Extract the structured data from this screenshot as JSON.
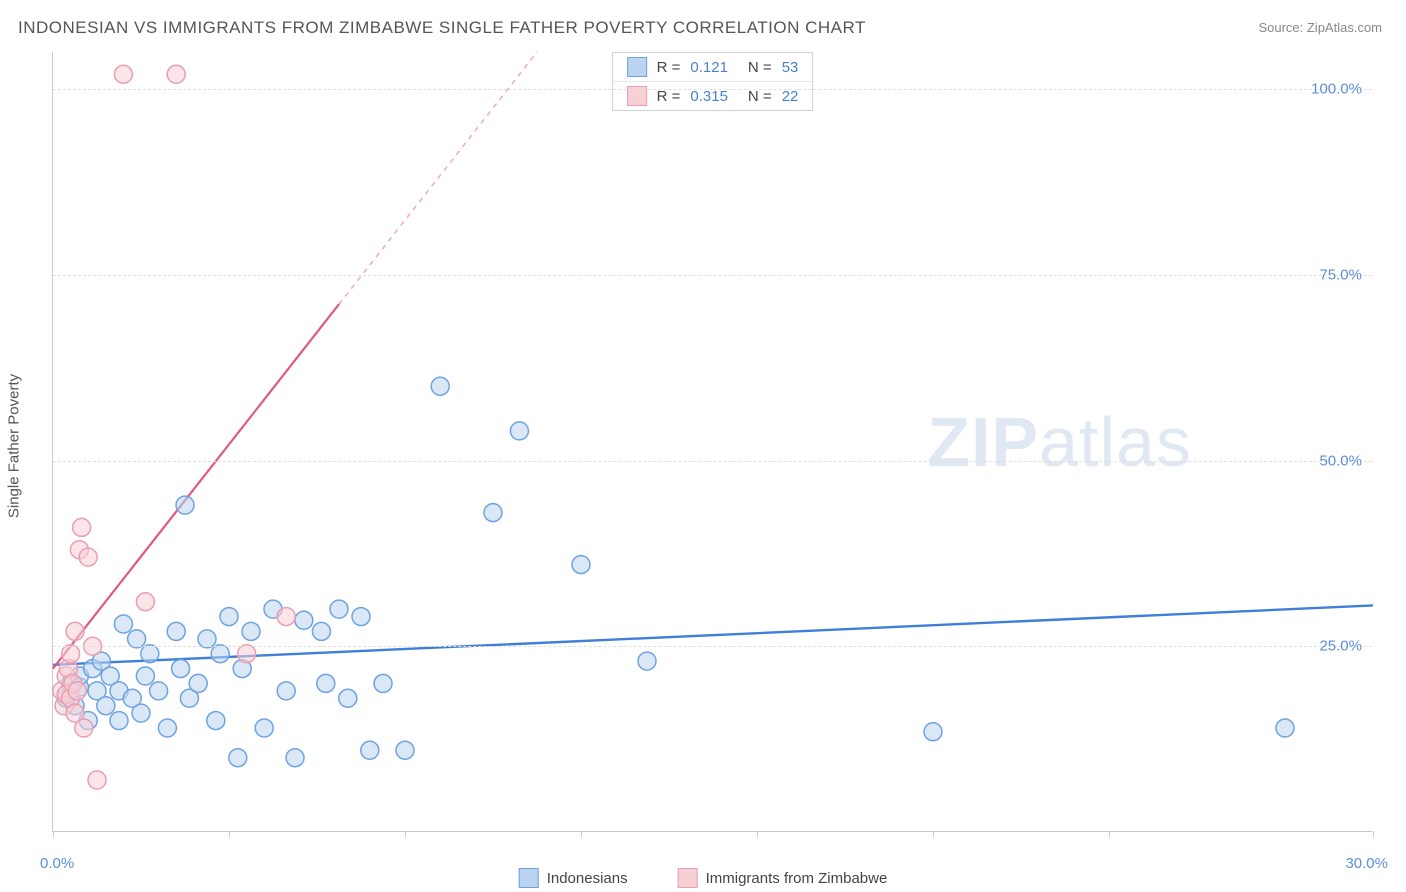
{
  "title": "INDONESIAN VS IMMIGRANTS FROM ZIMBABWE SINGLE FATHER POVERTY CORRELATION CHART",
  "source": "Source: ZipAtlas.com",
  "watermark_zip": "ZIP",
  "watermark_atlas": "atlas",
  "y_axis_title": "Single Father Poverty",
  "chart": {
    "type": "scatter",
    "background_color": "#ffffff",
    "grid_color": "#e0e0e0",
    "axis_color": "#c9c9c9",
    "tick_label_color": "#5b8fd6",
    "xlim": [
      0,
      30
    ],
    "ylim": [
      0,
      105
    ],
    "x_ticks": [
      0,
      4,
      8,
      12,
      16,
      20,
      24,
      30
    ],
    "x_tick_labels": {
      "0": "0.0%",
      "30": "30.0%"
    },
    "y_ticks": [
      25,
      50,
      75,
      100
    ],
    "y_tick_labels": {
      "25": "25.0%",
      "50": "50.0%",
      "75": "75.0%",
      "100": "100.0%"
    },
    "marker_radius": 9,
    "marker_stroke_width": 1.5,
    "series": [
      {
        "name": "Indonesians",
        "fill": "#b9d3f0",
        "stroke": "#6ea3e0",
        "fill_opacity": 0.55,
        "regression": {
          "x1": 0,
          "y1": 22.5,
          "x2": 30,
          "y2": 30.5,
          "color": "#3f7fd8",
          "width": 2.4,
          "solid_until_x": 30
        },
        "r_label": "R =",
        "r_value": "0.121",
        "n_label": "N =",
        "n_value": "53",
        "points": [
          [
            0.3,
            18
          ],
          [
            0.4,
            20
          ],
          [
            0.5,
            17
          ],
          [
            0.6,
            19.5
          ],
          [
            0.6,
            21
          ],
          [
            0.8,
            15
          ],
          [
            0.9,
            22
          ],
          [
            1.0,
            19
          ],
          [
            1.1,
            23
          ],
          [
            1.2,
            17
          ],
          [
            1.3,
            21
          ],
          [
            1.5,
            19
          ],
          [
            1.5,
            15
          ],
          [
            1.6,
            28
          ],
          [
            1.8,
            18
          ],
          [
            1.9,
            26
          ],
          [
            2.0,
            16
          ],
          [
            2.1,
            21
          ],
          [
            2.2,
            24
          ],
          [
            2.4,
            19
          ],
          [
            2.6,
            14
          ],
          [
            2.8,
            27
          ],
          [
            2.9,
            22
          ],
          [
            3.0,
            44
          ],
          [
            3.1,
            18
          ],
          [
            3.3,
            20
          ],
          [
            3.5,
            26
          ],
          [
            3.7,
            15
          ],
          [
            3.8,
            24
          ],
          [
            4.0,
            29
          ],
          [
            4.2,
            10
          ],
          [
            4.3,
            22
          ],
          [
            4.5,
            27
          ],
          [
            4.8,
            14
          ],
          [
            5.0,
            30
          ],
          [
            5.3,
            19
          ],
          [
            5.5,
            10
          ],
          [
            5.7,
            28.5
          ],
          [
            6.1,
            27
          ],
          [
            6.2,
            20
          ],
          [
            6.5,
            30
          ],
          [
            6.7,
            18
          ],
          [
            7.0,
            29
          ],
          [
            7.2,
            11
          ],
          [
            7.5,
            20
          ],
          [
            8.0,
            11
          ],
          [
            8.8,
            60
          ],
          [
            10.0,
            43
          ],
          [
            10.6,
            54
          ],
          [
            12.0,
            36
          ],
          [
            13.5,
            23
          ],
          [
            20.0,
            13.5
          ],
          [
            28.0,
            14
          ]
        ]
      },
      {
        "name": "Immigrants from Zimbabwe",
        "fill": "#f7cfd7",
        "stroke": "#ea9eb0",
        "fill_opacity": 0.55,
        "regression": {
          "x1": 0,
          "y1": 22,
          "x2": 11,
          "y2": 105,
          "color": "#e05a80",
          "width": 2.2,
          "solid_until_x": 6.5,
          "dash": "5,5"
        },
        "r_label": "R =",
        "r_value": "0.315",
        "n_label": "N =",
        "n_value": "22",
        "points": [
          [
            0.2,
            19
          ],
          [
            0.25,
            17
          ],
          [
            0.3,
            18.5
          ],
          [
            0.3,
            21
          ],
          [
            0.35,
            22
          ],
          [
            0.4,
            18
          ],
          [
            0.4,
            24
          ],
          [
            0.45,
            20
          ],
          [
            0.5,
            16
          ],
          [
            0.5,
            27
          ],
          [
            0.55,
            19
          ],
          [
            0.6,
            38
          ],
          [
            0.65,
            41
          ],
          [
            0.7,
            14
          ],
          [
            0.8,
            37
          ],
          [
            0.9,
            25
          ],
          [
            1.0,
            7
          ],
          [
            1.6,
            102
          ],
          [
            2.1,
            31
          ],
          [
            2.8,
            102
          ],
          [
            4.4,
            24
          ],
          [
            5.3,
            29
          ]
        ]
      }
    ]
  },
  "legend_bottom": [
    {
      "label": "Indonesians",
      "fill": "#b9d3f0",
      "stroke": "#6ea3e0"
    },
    {
      "label": "Immigrants from Zimbabwe",
      "fill": "#f7cfd7",
      "stroke": "#ea9eb0"
    }
  ]
}
